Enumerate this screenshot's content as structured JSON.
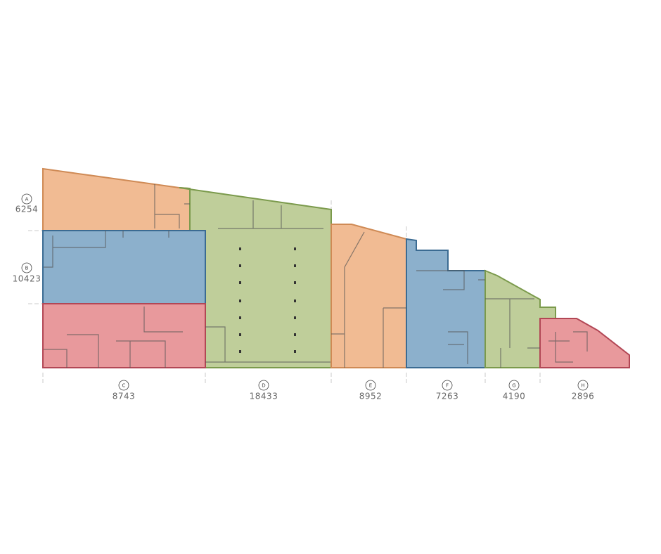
{
  "units": [
    {
      "id": "A",
      "area": 6254
    },
    {
      "id": "B",
      "area": 10423
    },
    {
      "id": "C",
      "area": 8743
    },
    {
      "id": "D",
      "area": 18433
    },
    {
      "id": "E",
      "area": 8952
    },
    {
      "id": "F",
      "area": 7263
    },
    {
      "id": "G",
      "area": 4190
    },
    {
      "id": "H",
      "area": 2896
    }
  ]
}
